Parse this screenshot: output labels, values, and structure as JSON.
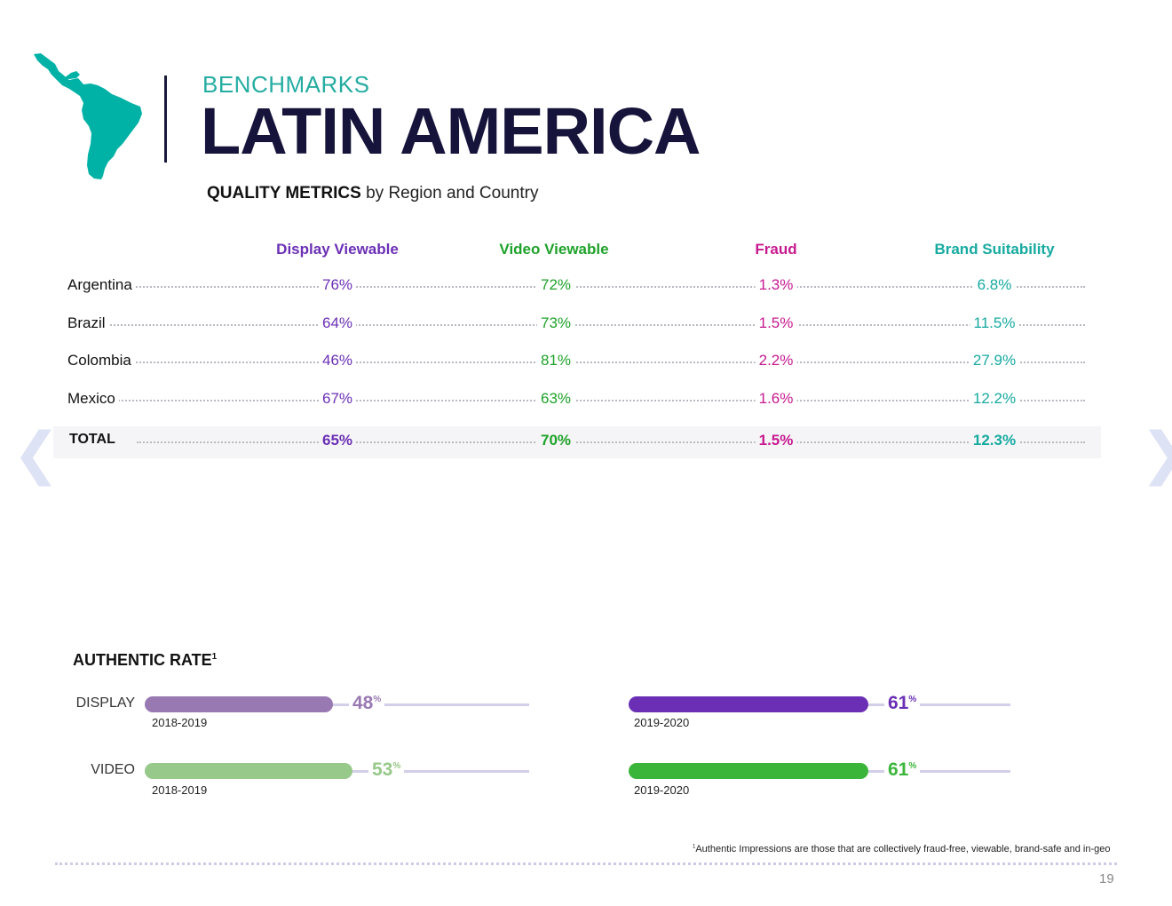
{
  "header": {
    "kicker": "BENCHMARKS",
    "title": "LATIN AMERICA",
    "subtitle_bold": "QUALITY METRICS",
    "subtitle_rest": " by Region and Country"
  },
  "colors": {
    "display": "#6b2fb5",
    "video": "#1fa22a",
    "fraud": "#c7198f",
    "brand": "#16aaa0",
    "map": "#00b2a6",
    "display_prev": "#9979b2",
    "video_prev": "#97c98a",
    "video_curr": "#3ab53a"
  },
  "table": {
    "columns": {
      "display": "Display Viewable",
      "video": "Video Viewable",
      "fraud": "Fraud",
      "brand": "Brand Suitability"
    },
    "rows": [
      {
        "country": "Argentina",
        "display": "76%",
        "video": "72%",
        "fraud": "1.3%",
        "brand": "6.8%"
      },
      {
        "country": "Brazil",
        "display": "64%",
        "video": "73%",
        "fraud": "1.5%",
        "brand": "11.5%"
      },
      {
        "country": "Colombia",
        "display": "46%",
        "video": "81%",
        "fraud": "2.2%",
        "brand": "27.9%"
      },
      {
        "country": "Mexico",
        "display": "67%",
        "video": "63%",
        "fraud": "1.6%",
        "brand": "12.2%"
      }
    ],
    "total": {
      "country": "TOTAL",
      "display": "65%",
      "video": "70%",
      "fraud": "1.5%",
      "brand": "12.3%"
    }
  },
  "nav": {
    "prev_icon": "chevron-left-icon",
    "next_icon": "chevron-right-icon"
  },
  "authentic": {
    "title": "AUTHENTIC RATE",
    "title_sup": "1",
    "display": {
      "label": "DISPLAY",
      "prev": {
        "value": 48,
        "display": "48",
        "unit": "%",
        "period": "2018-2019"
      },
      "curr": {
        "value": 61,
        "display": "61",
        "unit": "%",
        "period": "2019-2020"
      }
    },
    "video": {
      "label": "VIDEO",
      "prev": {
        "value": 53,
        "display": "53",
        "unit": "%",
        "period": "2018-2019"
      },
      "curr": {
        "value": 61,
        "display": "61",
        "unit": "%",
        "period": "2019-2020"
      }
    }
  },
  "footnote": {
    "sup": "1",
    "text": "Authentic Impressions are those that are collectively fraud-free, viewable, brand-safe and in-geo"
  },
  "page_number": "19"
}
